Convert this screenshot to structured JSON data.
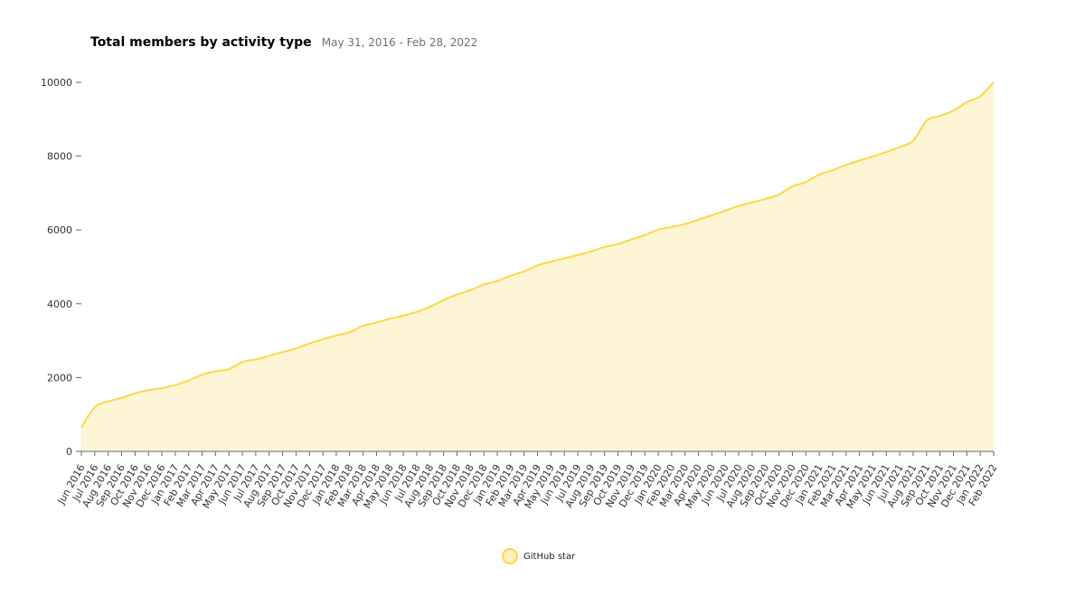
{
  "header": {
    "title": "Total members by activity type",
    "subtitle": "May 31, 2016 - Feb 28, 2022"
  },
  "legend": {
    "label": "GitHub star",
    "color": "#fcd844",
    "fill": "#fef5d6"
  },
  "chart_data": {
    "type": "area",
    "title": "Total members by activity type",
    "subtitle": "May 31, 2016 - Feb 28, 2022",
    "xlabel": "",
    "ylabel": "",
    "ylim": [
      0,
      10000
    ],
    "yticks": [
      0,
      2000,
      4000,
      6000,
      8000,
      10000
    ],
    "grid": false,
    "legend_position": "bottom",
    "categories": [
      "Jun 2016",
      "Jul 2016",
      "Aug 2016",
      "Sep 2016",
      "Oct 2016",
      "Nov 2016",
      "Dec 2016",
      "Jan 2017",
      "Feb 2017",
      "Mar 2017",
      "Apr 2017",
      "May 2017",
      "Jun 2017",
      "Jul 2017",
      "Aug 2017",
      "Sep 2017",
      "Oct 2017",
      "Nov 2017",
      "Dec 2017",
      "Jan 2018",
      "Feb 2018",
      "Mar 2018",
      "Apr 2018",
      "May 2018",
      "Jun 2018",
      "Jul 2018",
      "Aug 2018",
      "Sep 2018",
      "Oct 2018",
      "Nov 2018",
      "Dec 2018",
      "Jan 2019",
      "Feb 2019",
      "Mar 2019",
      "Apr 2019",
      "May 2019",
      "Jun 2019",
      "Jul 2019",
      "Aug 2019",
      "Sep 2019",
      "Oct 2019",
      "Nov 2019",
      "Dec 2019",
      "Jan 2020",
      "Feb 2020",
      "Mar 2020",
      "Apr 2020",
      "May 2020",
      "Jun 2020",
      "Jul 2020",
      "Aug 2020",
      "Sep 2020",
      "Oct 2020",
      "Nov 2020",
      "Dec 2020",
      "Jan 2021",
      "Feb 2021",
      "Mar 2021",
      "Apr 2021",
      "May 2021",
      "Jun 2021",
      "Jul 2021",
      "Aug 2021",
      "Sep 2021",
      "Oct 2021",
      "Nov 2021",
      "Dec 2021",
      "Jan 2022",
      "Feb 2022"
    ],
    "series": [
      {
        "name": "GitHub star",
        "color": "#fcd844",
        "values": [
          650,
          1200,
          1350,
          1450,
          1570,
          1660,
          1710,
          1800,
          1920,
          2080,
          2170,
          2230,
          2420,
          2490,
          2590,
          2690,
          2790,
          2920,
          3040,
          3140,
          3230,
          3400,
          3490,
          3590,
          3680,
          3780,
          3920,
          4100,
          4250,
          4370,
          4520,
          4620,
          4760,
          4880,
          5040,
          5140,
          5230,
          5320,
          5420,
          5540,
          5620,
          5740,
          5860,
          6010,
          6080,
          6160,
          6280,
          6400,
          6520,
          6650,
          6750,
          6840,
          6960,
          7180,
          7300,
          7500,
          7620,
          7760,
          7880,
          7990,
          8110,
          8250,
          8420,
          8960,
          9090,
          9230,
          9460,
          9620,
          10000
        ]
      }
    ]
  }
}
